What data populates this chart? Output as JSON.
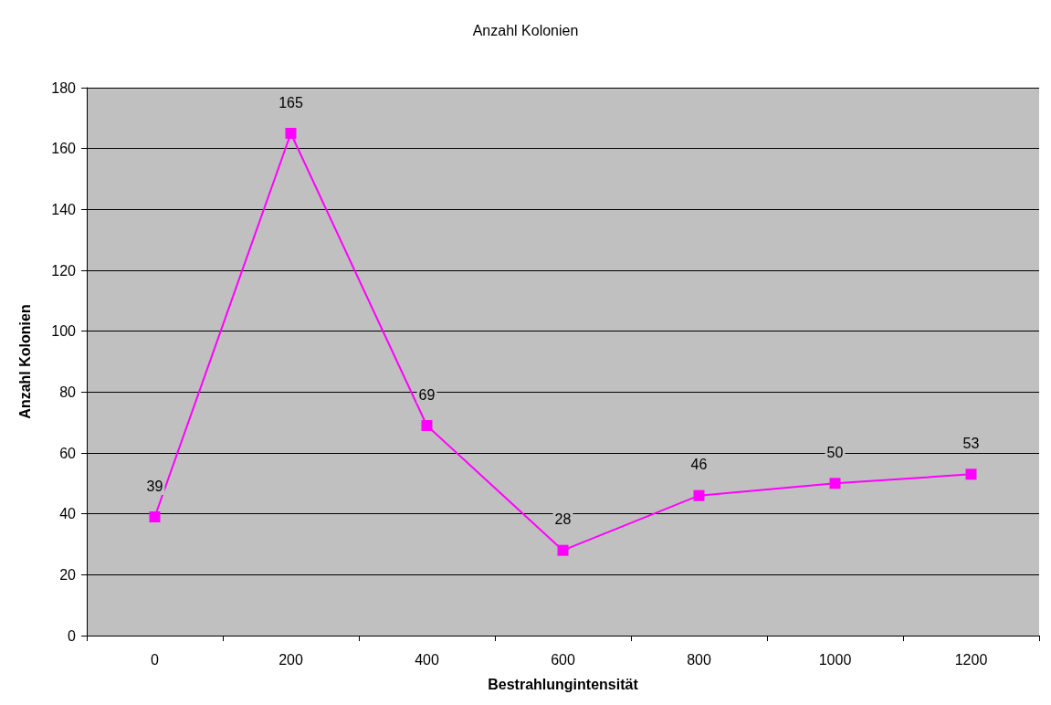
{
  "chart_data": {
    "type": "line",
    "title": "Anzahl Kolonien",
    "xlabel": "Bestrahlungintensität",
    "ylabel": "Anzahl Kolonien",
    "categories": [
      "0",
      "200",
      "400",
      "600",
      "800",
      "1000",
      "1200"
    ],
    "series": [
      {
        "color": "#ff00ff",
        "values": [
          39,
          165,
          69,
          28,
          46,
          50,
          53
        ]
      }
    ],
    "ylim": [
      0,
      180
    ],
    "yticks": [
      0,
      20,
      40,
      60,
      80,
      100,
      120,
      140,
      160,
      180
    ],
    "grid": "y",
    "marker": "square",
    "line_style": "solid",
    "data_labels": true
  }
}
